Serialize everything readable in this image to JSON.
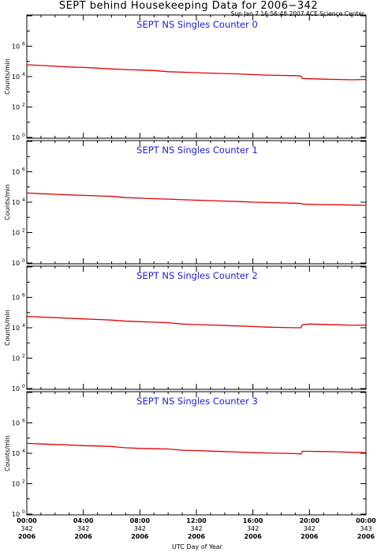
{
  "title": "SEPT behind Housekeeping Data for 2006−342",
  "timestamp": "Sun Jan  7 16:56:48 2007 ACE Science Center",
  "xlabel": "UTC Day of Year",
  "ylabel": "Counts/min",
  "colors": {
    "line": "#e00000",
    "panel_title": "#2020d0",
    "axes": "#000000"
  },
  "chart_data": [
    {
      "type": "line",
      "title": "SEPT NS Singles Counter 0",
      "ylabel": "Counts/min",
      "yscale": "log",
      "ylim": [
        1,
        100000000
      ],
      "xlim": [
        0,
        24
      ],
      "x": [
        0,
        1,
        2,
        3,
        4,
        5,
        6,
        7,
        8,
        9,
        10,
        11,
        12,
        13,
        14,
        15,
        16,
        17,
        18,
        19,
        19.4,
        19.5,
        20,
        21,
        22,
        23,
        24
      ],
      "series": [
        {
          "values": [
            60000,
            54000,
            48000,
            43000,
            40000,
            36000,
            32000,
            29000,
            27000,
            25000,
            21000,
            19500,
            18000,
            17000,
            16000,
            15000,
            13500,
            12500,
            12000,
            11500,
            11000,
            7500,
            7200,
            6800,
            6500,
            6200,
            6500
          ]
        }
      ]
    },
    {
      "type": "line",
      "title": "SEPT NS Singles Counter 1",
      "ylabel": "Counts/min",
      "yscale": "log",
      "ylim": [
        1,
        100000000
      ],
      "xlim": [
        0,
        24
      ],
      "x": [
        0,
        1,
        2,
        3,
        4,
        5,
        6,
        7,
        8,
        9,
        10,
        11,
        12,
        13,
        14,
        15,
        16,
        17,
        18,
        19,
        19.4,
        19.5,
        20,
        21,
        22,
        23,
        24
      ],
      "series": [
        {
          "values": [
            40000,
            36000,
            33000,
            30000,
            28000,
            26000,
            24000,
            20000,
            18500,
            17000,
            16000,
            14500,
            13500,
            12500,
            11800,
            11000,
            10000,
            9500,
            9000,
            8600,
            8200,
            7500,
            7200,
            6900,
            6700,
            6400,
            6200
          ]
        }
      ]
    },
    {
      "type": "line",
      "title": "SEPT NS Singles Counter 2",
      "ylabel": "Counts/min",
      "yscale": "log",
      "ylim": [
        1,
        100000000
      ],
      "xlim": [
        0,
        24
      ],
      "x": [
        0,
        1,
        2,
        3,
        4,
        5,
        6,
        7,
        8,
        9,
        10,
        11,
        12,
        13,
        14,
        15,
        16,
        17,
        18,
        19,
        19.4,
        19.5,
        20,
        21,
        22,
        23,
        24
      ],
      "series": [
        {
          "values": [
            55000,
            50000,
            46000,
            42000,
            38000,
            35000,
            32000,
            27000,
            25000,
            23000,
            21500,
            17500,
            16000,
            15000,
            14000,
            13000,
            12000,
            11000,
            10500,
            10000,
            10000,
            16000,
            17500,
            16500,
            15500,
            14500,
            15000
          ]
        }
      ]
    },
    {
      "type": "line",
      "title": "SEPT NS Singles Counter 3",
      "ylabel": "Counts/min",
      "yscale": "log",
      "ylim": [
        1,
        100000000
      ],
      "xlim": [
        0,
        24
      ],
      "x": [
        0,
        1,
        2,
        3,
        4,
        5,
        6,
        7,
        8,
        9,
        10,
        11,
        12,
        13,
        14,
        15,
        16,
        17,
        18,
        19,
        19.4,
        19.5,
        20,
        21,
        22,
        23,
        24
      ],
      "series": [
        {
          "values": [
            45000,
            41000,
            38000,
            35000,
            32000,
            30000,
            28000,
            23000,
            21000,
            20000,
            19000,
            16000,
            15000,
            14000,
            13000,
            12000,
            11000,
            10500,
            10000,
            9500,
            9000,
            13500,
            13500,
            13000,
            12500,
            11500,
            11000
          ]
        }
      ]
    }
  ],
  "yticks": [
    {
      "base": "10",
      "exp": "0"
    },
    {
      "base": "10",
      "exp": "2"
    },
    {
      "base": "10",
      "exp": "4"
    },
    {
      "base": "10",
      "exp": "6"
    }
  ],
  "xticks": [
    {
      "time": "00:00",
      "doy": "342",
      "year": "2006"
    },
    {
      "time": "04:00",
      "doy": "342",
      "year": "2006"
    },
    {
      "time": "08:00",
      "doy": "342",
      "year": "2006"
    },
    {
      "time": "12:00",
      "doy": "342",
      "year": "2006"
    },
    {
      "time": "16:00",
      "doy": "342",
      "year": "2006"
    },
    {
      "time": "20:00",
      "doy": "342",
      "year": "2006"
    },
    {
      "time": "00:00",
      "doy": "343",
      "year": "2006"
    }
  ]
}
